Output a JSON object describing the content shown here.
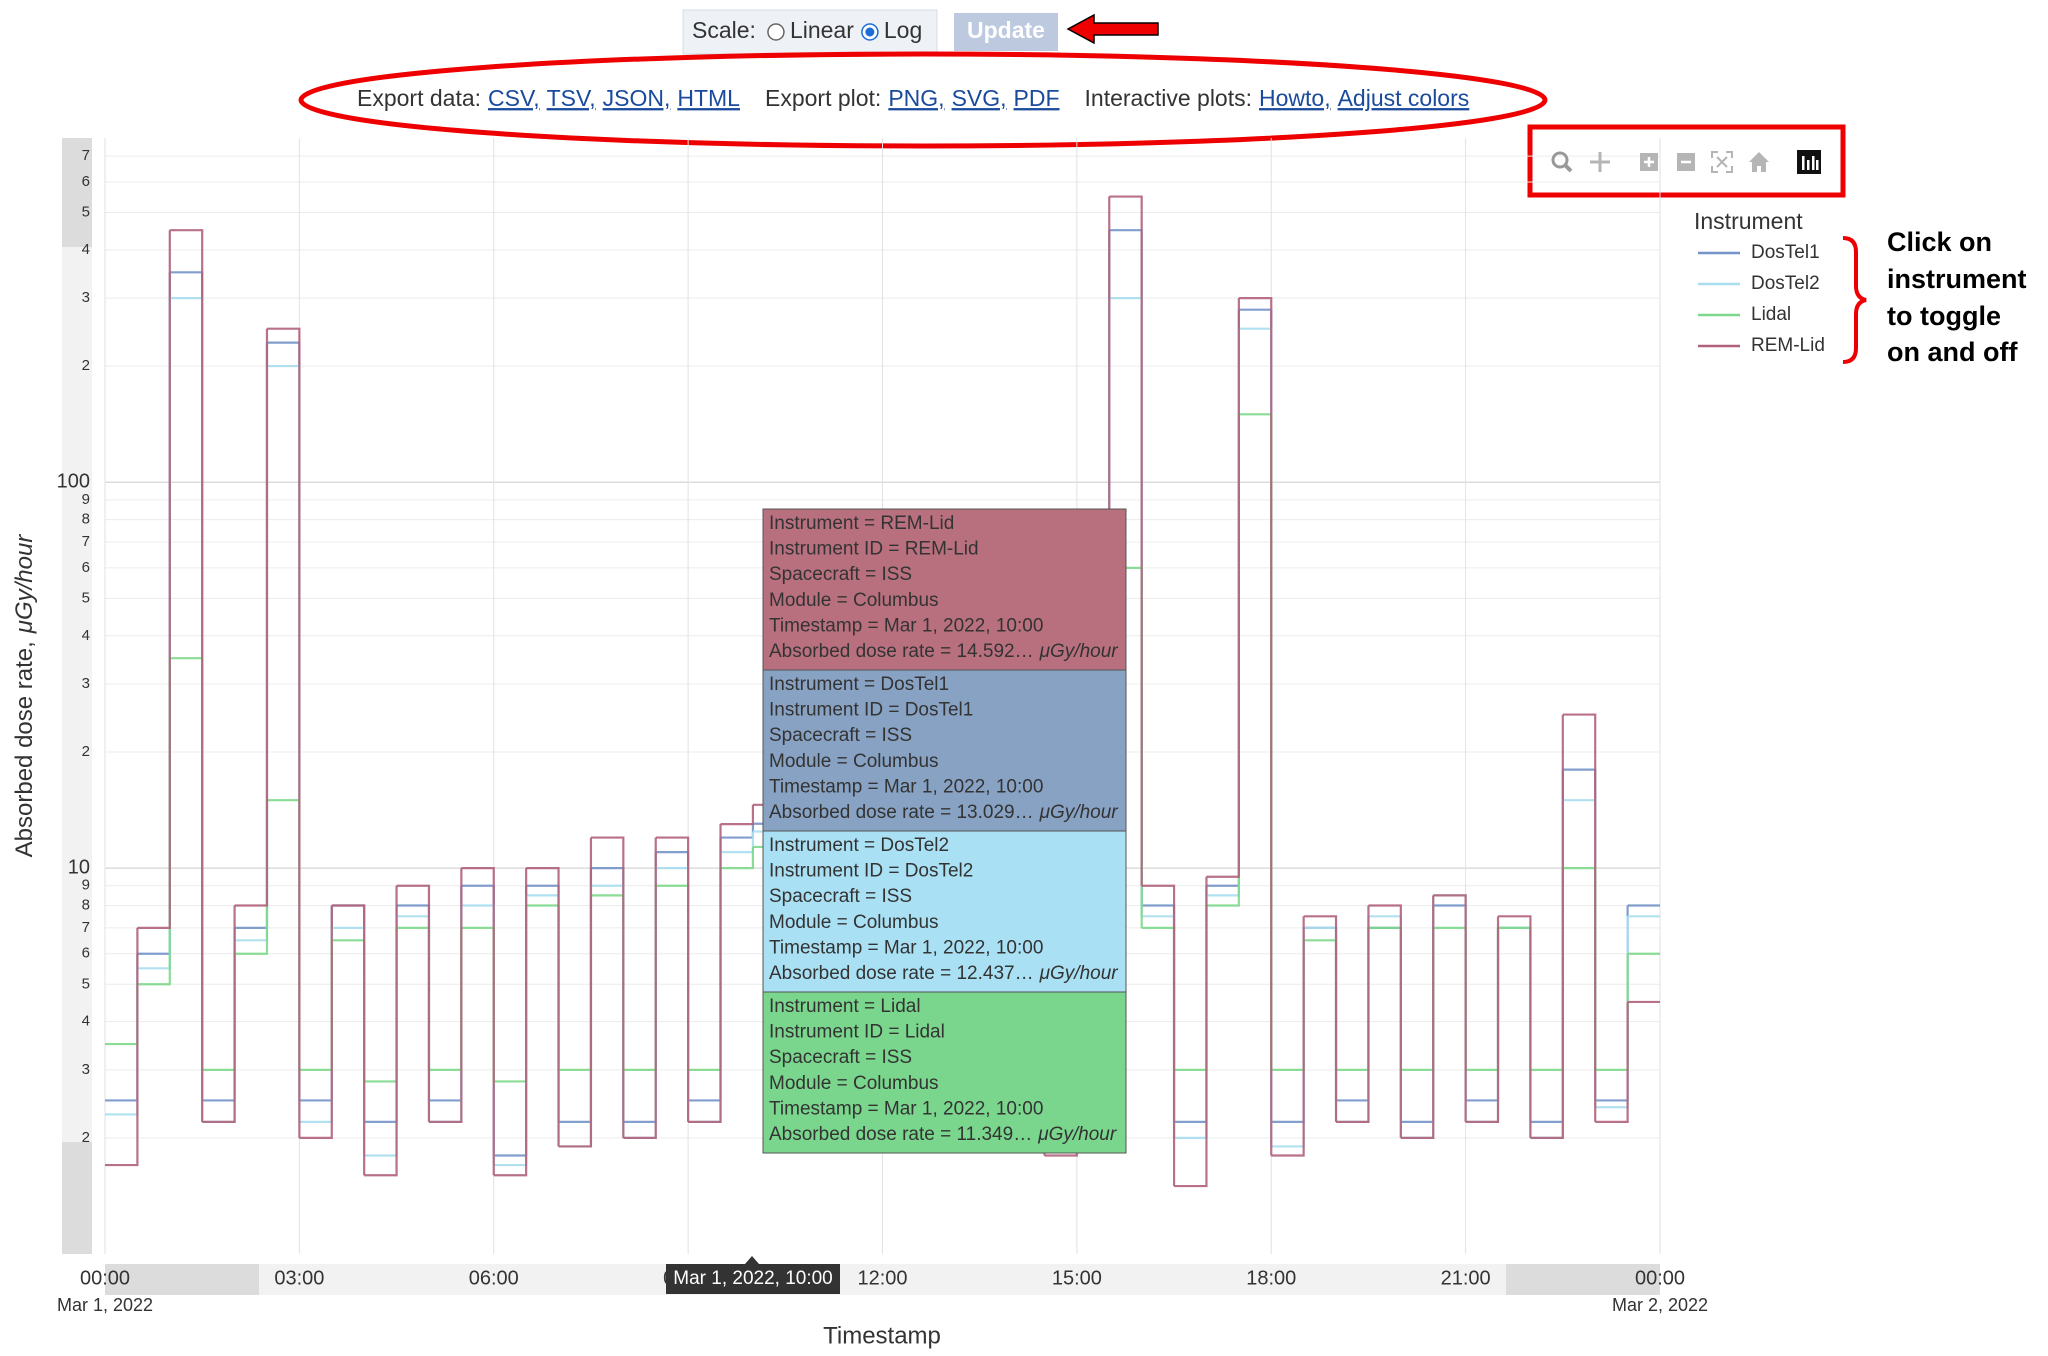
{
  "ui": {
    "scale_label": "Scale:",
    "scale_options": [
      "Linear",
      "Log"
    ],
    "scale_selected": "Log",
    "update_button": "Update",
    "export_data_label": "Export data:",
    "export_data_links": [
      "CSV,",
      "TSV,",
      "JSON,",
      "HTML"
    ],
    "export_plot_label": "Export plot:",
    "export_plot_links": [
      "PNG,",
      "SVG,",
      "PDF"
    ],
    "interactive_label": "Interactive plots:",
    "interactive_links": [
      "Howto,",
      "Adjust colors"
    ],
    "annotation": [
      "Click on",
      "instrument",
      "to toggle",
      "on and off"
    ],
    "hover_label": "Mar 1, 2022, 10:00",
    "tooltips": [
      {
        "color": "#b8707e",
        "lines": [
          "Instrument = REM-Lid",
          "Instrument ID = REM-Lid",
          "Spacecraft = ISS",
          "Module = Columbus",
          "Timestamp = Mar 1, 2022, 10:00"
        ],
        "rate": "Absorbed dose rate = 14.592…",
        "unit": "μGy/hour"
      },
      {
        "color": "#88a2c4",
        "lines": [
          "Instrument = DosTel1",
          "Instrument ID = DosTel1",
          "Spacecraft = ISS",
          "Module = Columbus",
          "Timestamp = Mar 1, 2022, 10:00"
        ],
        "rate": "Absorbed dose rate = 13.029…",
        "unit": "μGy/hour"
      },
      {
        "color": "#a9e0f3",
        "lines": [
          "Instrument = DosTel2",
          "Instrument ID = DosTel2",
          "Spacecraft = ISS",
          "Module = Columbus",
          "Timestamp = Mar 1, 2022, 10:00"
        ],
        "rate": "Absorbed dose rate = 12.437…",
        "unit": "μGy/hour"
      },
      {
        "color": "#7ad68d",
        "lines": [
          "Instrument = Lidal",
          "Instrument ID = Lidal",
          "Spacecraft = ISS",
          "Module = Columbus",
          "Timestamp = Mar 1, 2022, 10:00"
        ],
        "rate": "Absorbed dose rate = 11.349…",
        "unit": "μGy/hour"
      }
    ]
  },
  "chart_data": {
    "type": "step-line",
    "y_label": "Absorbed dose rate,",
    "y_unit": "μGy/hour",
    "x_label": "Timestamp",
    "legend_title": "Instrument",
    "legend": "right",
    "log_y": true,
    "grid": true,
    "xlim": [
      "2022-03-01T00:00",
      "2022-03-02T00:00"
    ],
    "xticks": [
      {
        "value": "2022-03-01T00:00",
        "label": "00:00",
        "date_label": "Mar 1, 2022"
      },
      {
        "value": "2022-03-01T03:00",
        "label": "03:00"
      },
      {
        "value": "2022-03-01T06:00",
        "label": "06:00"
      },
      {
        "value": "2022-03-01T09:00",
        "label": "09:00"
      },
      {
        "value": "2022-03-01T12:00",
        "label": "12:00"
      },
      {
        "value": "2022-03-01T15:00",
        "label": "15:00"
      },
      {
        "value": "2022-03-01T18:00",
        "label": "18:00"
      },
      {
        "value": "2022-03-01T21:00",
        "label": "21:00"
      },
      {
        "value": "2022-03-02T00:00",
        "label": "00:00",
        "date_label": "Mar 2, 2022"
      }
    ],
    "ylim": [
      1,
      780
    ],
    "yticks": [
      2,
      3,
      4,
      5,
      6,
      7,
      8,
      9,
      10,
      {
        "value": 20,
        "label": "2"
      },
      {
        "value": 30,
        "label": "3"
      },
      {
        "value": 40,
        "label": "4"
      },
      {
        "value": 50,
        "label": "5"
      },
      {
        "value": 60,
        "label": "6"
      },
      {
        "value": 70,
        "label": "7"
      },
      {
        "value": 80,
        "label": "8"
      },
      {
        "value": 90,
        "label": "9"
      },
      100,
      {
        "value": 200,
        "label": "2"
      },
      {
        "value": 300,
        "label": "3"
      },
      {
        "value": 400,
        "label": "4"
      },
      {
        "value": 500,
        "label": "5"
      },
      {
        "value": 600,
        "label": "6"
      },
      {
        "value": 700,
        "label": "7"
      }
    ],
    "x": [
      "2022-03-01T00:00",
      "2022-03-01T00:30",
      "2022-03-01T01:00",
      "2022-03-01T01:30",
      "2022-03-01T02:00",
      "2022-03-01T02:30",
      "2022-03-01T03:00",
      "2022-03-01T03:30",
      "2022-03-01T04:00",
      "2022-03-01T04:30",
      "2022-03-01T05:00",
      "2022-03-01T05:30",
      "2022-03-01T06:00",
      "2022-03-01T06:30",
      "2022-03-01T07:00",
      "2022-03-01T07:30",
      "2022-03-01T08:00",
      "2022-03-01T08:30",
      "2022-03-01T09:00",
      "2022-03-01T09:30",
      "2022-03-01T10:00",
      "2022-03-01T10:30",
      "2022-03-01T11:00",
      "2022-03-01T11:30",
      "2022-03-01T12:00",
      "2022-03-01T12:30",
      "2022-03-01T13:00",
      "2022-03-01T13:30",
      "2022-03-01T14:00",
      "2022-03-01T14:30",
      "2022-03-01T15:00",
      "2022-03-01T15:30",
      "2022-03-01T16:00",
      "2022-03-01T16:30",
      "2022-03-01T17:00",
      "2022-03-01T17:30",
      "2022-03-01T18:00",
      "2022-03-01T18:30",
      "2022-03-01T19:00",
      "2022-03-01T19:30",
      "2022-03-01T20:00",
      "2022-03-01T20:30",
      "2022-03-01T21:00",
      "2022-03-01T21:30",
      "2022-03-01T22:00",
      "2022-03-01T22:30",
      "2022-03-01T23:00",
      "2022-03-01T23:30"
    ],
    "series": [
      {
        "name": "DosTel1",
        "color": "#7393c9",
        "values": [
          2.5,
          6,
          350,
          2.5,
          7,
          230,
          2.5,
          8,
          2.2,
          8,
          2.5,
          9,
          1.8,
          9,
          2.2,
          10,
          2.2,
          11,
          2.5,
          12,
          13.029,
          3,
          9,
          2.5,
          10,
          2.2,
          9,
          2.5,
          9,
          2.2,
          4,
          450,
          8,
          2.2,
          9,
          280,
          2.2,
          7,
          2.5,
          7,
          2.2,
          8,
          2.5,
          7,
          2.2,
          18,
          2.5,
          8
        ]
      },
      {
        "name": "DosTel2",
        "color": "#a9def0",
        "values": [
          2.3,
          5.5,
          300,
          2.2,
          6.5,
          200,
          2.2,
          7,
          1.8,
          7.5,
          2.2,
          8,
          1.7,
          8.5,
          1.9,
          9,
          2,
          10,
          2.2,
          11,
          12.437,
          2.8,
          8.5,
          2.2,
          9.5,
          2,
          8.5,
          2.2,
          8.5,
          2,
          3.5,
          300,
          7.5,
          2,
          8.5,
          250,
          1.9,
          7,
          2.2,
          7.5,
          2,
          8.5,
          2.2,
          7,
          2,
          15,
          2.4,
          7.5
        ]
      },
      {
        "name": "Lidal",
        "color": "#7dd88b",
        "values": [
          3.5,
          5,
          35,
          3,
          6,
          15,
          3,
          6.5,
          2.8,
          7,
          3,
          7,
          2.8,
          8,
          3,
          8.5,
          3,
          9,
          3,
          10,
          11.349,
          3.5,
          8,
          3,
          8.5,
          3,
          8,
          3,
          8,
          3,
          4,
          60,
          7,
          3,
          8,
          150,
          3,
          6.5,
          3,
          7,
          3,
          7,
          3,
          7,
          3,
          10,
          3,
          6
        ]
      },
      {
        "name": "REM-Lid",
        "color": "#b0627a",
        "values": [
          1.7,
          7,
          450,
          2.2,
          8,
          250,
          2,
          8,
          1.6,
          9,
          2.2,
          10,
          1.6,
          10,
          1.9,
          12,
          2,
          12,
          2.2,
          13,
          14.592,
          3,
          10,
          2.3,
          11,
          2,
          10,
          2.2,
          10,
          1.8,
          4.5,
          550,
          9,
          1.5,
          9.5,
          300,
          1.8,
          7.5,
          2.2,
          8,
          2,
          8.5,
          2.2,
          7.5,
          2,
          25,
          2.2,
          4.5
        ]
      }
    ]
  }
}
